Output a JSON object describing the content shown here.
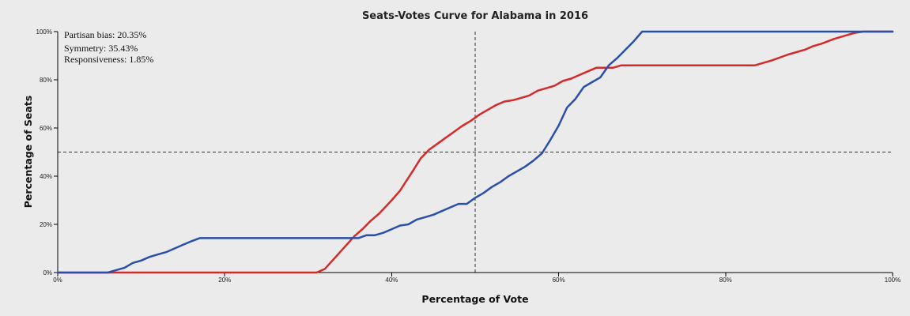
{
  "stats": {
    "partisan_bias": "Partisan bias: 20.35%",
    "symmetry": "Symmetry: 35.43%",
    "responsiveness": "Responsiveness: 1.85%"
  },
  "chart_data": {
    "type": "line",
    "title": "Seats-Votes Curve for Alabama in 2016",
    "xlabel": "Percentage of Vote",
    "ylabel": "Percentage of Seats",
    "xlim": [
      0,
      100
    ],
    "ylim": [
      0,
      100
    ],
    "x_ticks": [
      "0%",
      "20%",
      "40%",
      "60%",
      "80%",
      "100%"
    ],
    "y_ticks": [
      "0%",
      "20%",
      "40%",
      "60%",
      "80%",
      "100%"
    ],
    "reference_lines": {
      "x": 50,
      "y": 50
    },
    "grid": false,
    "series": [
      {
        "color": "#d42a2a",
        "points": [
          [
            0,
            0
          ],
          [
            31,
            0
          ],
          [
            32,
            1.5
          ],
          [
            35.5,
            15
          ],
          [
            36.5,
            18
          ],
          [
            37.5,
            21.5
          ],
          [
            38.5,
            24.5
          ],
          [
            40,
            30
          ],
          [
            41,
            34
          ],
          [
            42.5,
            42
          ],
          [
            43.5,
            47.5
          ],
          [
            44.5,
            51
          ],
          [
            45.5,
            53.5
          ],
          [
            46.5,
            56
          ],
          [
            47.5,
            58.5
          ],
          [
            48.5,
            61
          ],
          [
            49.5,
            63
          ],
          [
            50.5,
            65.5
          ],
          [
            51.5,
            67.5
          ],
          [
            52.5,
            69.5
          ],
          [
            53.5,
            71
          ],
          [
            54.5,
            71.5
          ],
          [
            55.5,
            72.5
          ],
          [
            56.5,
            73.5
          ],
          [
            57.5,
            75.5
          ],
          [
            58.5,
            76.5
          ],
          [
            59.5,
            77.5
          ],
          [
            60.5,
            79.5
          ],
          [
            61.5,
            80.5
          ],
          [
            62.5,
            82
          ],
          [
            63.5,
            83.5
          ],
          [
            64.5,
            85
          ],
          [
            66.5,
            85
          ],
          [
            67.5,
            86
          ],
          [
            83.5,
            86
          ],
          [
            85.5,
            88
          ],
          [
            87.5,
            90.5
          ],
          [
            89.5,
            92.5
          ],
          [
            90.5,
            94
          ],
          [
            91.5,
            95
          ],
          [
            93,
            97
          ],
          [
            94.5,
            98.5
          ],
          [
            95.5,
            99.5
          ],
          [
            96.5,
            100
          ],
          [
            100,
            100
          ]
        ]
      },
      {
        "color": "#2b4fa8",
        "points": [
          [
            0,
            0
          ],
          [
            6,
            0
          ],
          [
            7,
            1
          ],
          [
            8,
            2
          ],
          [
            9,
            4
          ],
          [
            10,
            5
          ],
          [
            11,
            6.5
          ],
          [
            12,
            7.5
          ],
          [
            13,
            8.5
          ],
          [
            14,
            10
          ],
          [
            15,
            11.5
          ],
          [
            16,
            13
          ],
          [
            17,
            14.3
          ],
          [
            36,
            14.3
          ],
          [
            37,
            15.5
          ],
          [
            38,
            15.5
          ],
          [
            39,
            16.5
          ],
          [
            40,
            18
          ],
          [
            41,
            19.5
          ],
          [
            42,
            20
          ],
          [
            43,
            22
          ],
          [
            44,
            23
          ],
          [
            45,
            24
          ],
          [
            46,
            25.5
          ],
          [
            47,
            27
          ],
          [
            48,
            28.5
          ],
          [
            49,
            28.5
          ],
          [
            50,
            31
          ],
          [
            51,
            33
          ],
          [
            52,
            35.5
          ],
          [
            53,
            37.5
          ],
          [
            54,
            40
          ],
          [
            55,
            42
          ],
          [
            56,
            44
          ],
          [
            57,
            46.5
          ],
          [
            58,
            49.5
          ],
          [
            59,
            55
          ],
          [
            60,
            61
          ],
          [
            61,
            68.5
          ],
          [
            62,
            72
          ],
          [
            63,
            77
          ],
          [
            64,
            79
          ],
          [
            65,
            81
          ],
          [
            66,
            86
          ],
          [
            67,
            89
          ],
          [
            68,
            92.5
          ],
          [
            69,
            96
          ],
          [
            70,
            100
          ],
          [
            100,
            100
          ]
        ]
      }
    ]
  }
}
